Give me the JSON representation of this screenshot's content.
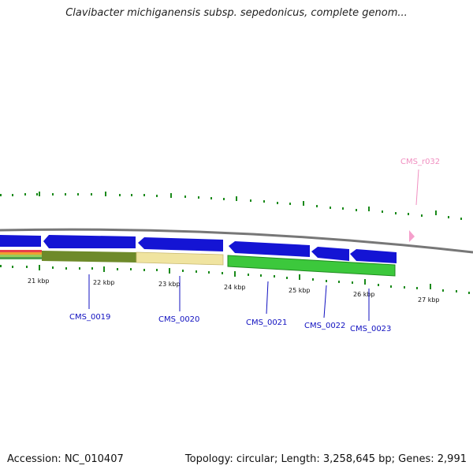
{
  "title": "Clavibacter michiganensis subsp. sepedonicus, complete genom...",
  "footer": {
    "accession": "Accession: NC_010407",
    "summary": "Topology: circular; Length: 3,258,645 bp; Genes: 2,991"
  },
  "colors": {
    "backbone": "#888888",
    "tick": "#1a8a1a",
    "cds_arrow": "#1414d4",
    "gene_label": "#1010c0",
    "rna": "#f08fc0",
    "olive": "#6e8a2a",
    "khaki": "#f0e4a0",
    "green": "#3cc83c"
  },
  "scale_labels": [
    "21 kbp",
    "22 kbp",
    "23 kbp",
    "24 kbp",
    "25 kbp",
    "26 kbp",
    "27 kbp"
  ],
  "genes": [
    "CMS_0019",
    "CMS_0020",
    "CMS_0021",
    "CMS_0022",
    "CMS_0023"
  ],
  "rna_feature": "CMS_r032"
}
